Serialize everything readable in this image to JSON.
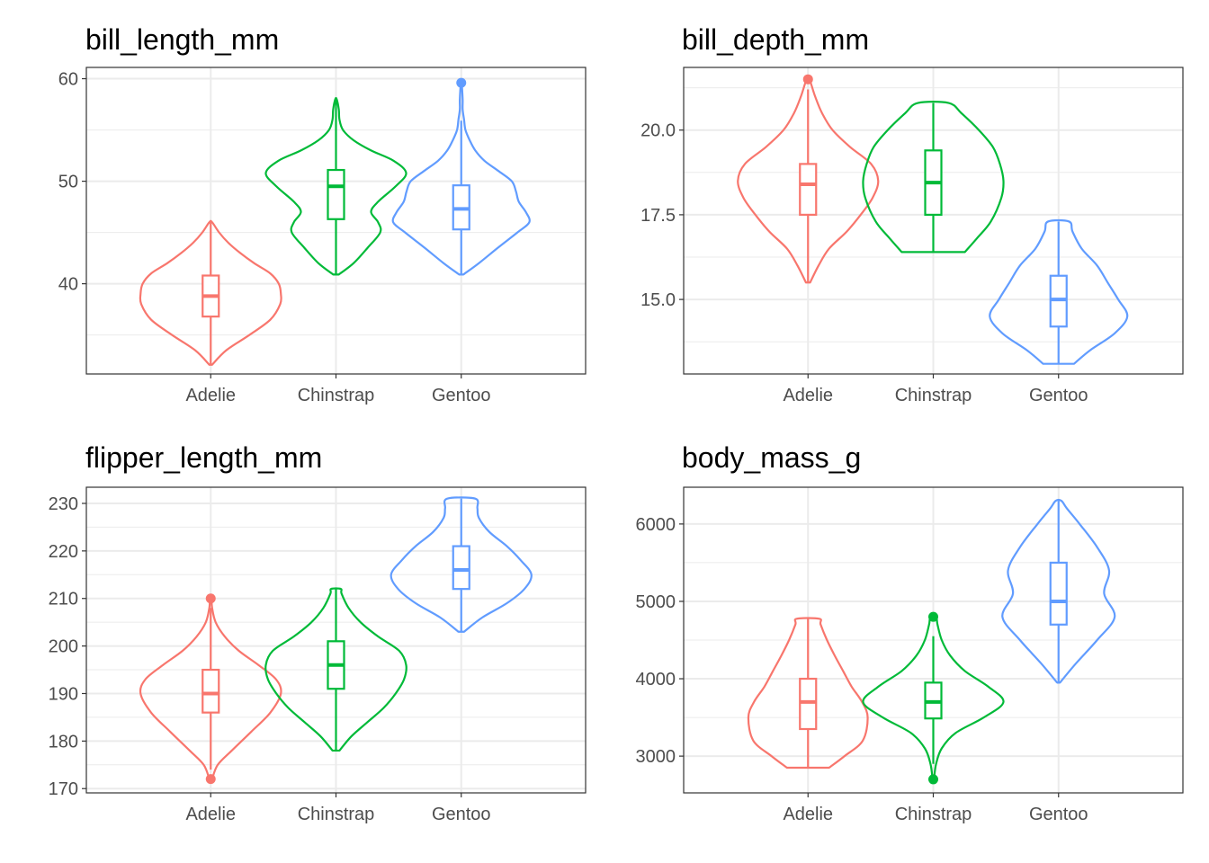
{
  "chart_data": [
    {
      "type": "violin",
      "title": "bill_length_mm",
      "xlabel": "",
      "ylabel": "",
      "categories": [
        "Adelie",
        "Chinstrap",
        "Gentoo"
      ],
      "ylim": [
        31.2,
        61.1
      ],
      "yticks": [
        40,
        50,
        60
      ],
      "ytick_labels": [
        "40",
        "50",
        "60"
      ],
      "minor_yticks": [
        35,
        45,
        55
      ],
      "grid": true,
      "groups": [
        {
          "name": "Adelie",
          "color": "#F8766D",
          "min": 32.1,
          "q1": 36.8,
          "median": 38.8,
          "q3": 40.8,
          "max": 46.0,
          "outliers": [],
          "density": [
            [
              32.1,
              0.02
            ],
            [
              33.5,
              0.22
            ],
            [
              35,
              0.55
            ],
            [
              36.5,
              0.85
            ],
            [
              38,
              0.99
            ],
            [
              39,
              1.0
            ],
            [
              40,
              0.97
            ],
            [
              41,
              0.85
            ],
            [
              42,
              0.62
            ],
            [
              43,
              0.42
            ],
            [
              44,
              0.25
            ],
            [
              45,
              0.12
            ],
            [
              46,
              0.02
            ]
          ]
        },
        {
          "name": "Chinstrap",
          "color": "#00BA38",
          "min": 40.9,
          "q1": 46.3,
          "median": 49.5,
          "q3": 51.1,
          "max": 58.0,
          "outliers": [],
          "density": [
            [
              40.9,
              0.04
            ],
            [
              42,
              0.25
            ],
            [
              43.5,
              0.45
            ],
            [
              45,
              0.63
            ],
            [
              46,
              0.6
            ],
            [
              47,
              0.5
            ],
            [
              48,
              0.6
            ],
            [
              49.5,
              0.85
            ],
            [
              50.8,
              1.0
            ],
            [
              52,
              0.82
            ],
            [
              53,
              0.5
            ],
            [
              54,
              0.25
            ],
            [
              55,
              0.1
            ],
            [
              56,
              0.05
            ],
            [
              57,
              0.04
            ],
            [
              58,
              0.01
            ]
          ]
        },
        {
          "name": "Gentoo",
          "color": "#619CFF",
          "min": 40.9,
          "q1": 45.3,
          "median": 47.3,
          "q3": 49.6,
          "max": 55.9,
          "outliers": [
            59.6
          ],
          "density": [
            [
              40.9,
              0.03
            ],
            [
              42,
              0.25
            ],
            [
              43.5,
              0.52
            ],
            [
              45,
              0.8
            ],
            [
              46,
              0.97
            ],
            [
              47,
              0.92
            ],
            [
              48,
              0.82
            ],
            [
              49,
              0.78
            ],
            [
              50,
              0.72
            ],
            [
              51,
              0.53
            ],
            [
              52,
              0.33
            ],
            [
              53,
              0.2
            ],
            [
              54,
              0.12
            ],
            [
              55,
              0.06
            ],
            [
              56,
              0.04
            ],
            [
              57,
              0.02
            ],
            [
              58,
              0.02
            ],
            [
              59.6,
              0.005
            ]
          ]
        }
      ]
    },
    {
      "type": "violin",
      "title": "bill_depth_mm",
      "xlabel": "",
      "ylabel": "",
      "categories": [
        "Adelie",
        "Chinstrap",
        "Gentoo"
      ],
      "ylim": [
        12.8,
        21.85
      ],
      "yticks": [
        15.0,
        17.5,
        20.0
      ],
      "ytick_labels": [
        "15.0",
        "17.5",
        "20.0"
      ],
      "minor_yticks": [
        13.75,
        16.25,
        18.75,
        21.25
      ],
      "grid": true,
      "groups": [
        {
          "name": "Adelie",
          "color": "#F8766D",
          "min": 15.5,
          "q1": 17.5,
          "median": 18.4,
          "q3": 19.0,
          "max": 21.2,
          "outliers": [
            21.5
          ],
          "density": [
            [
              15.5,
              0.03
            ],
            [
              16,
              0.15
            ],
            [
              16.5,
              0.3
            ],
            [
              17,
              0.55
            ],
            [
              17.5,
              0.75
            ],
            [
              18,
              0.92
            ],
            [
              18.5,
              1.0
            ],
            [
              19,
              0.9
            ],
            [
              19.5,
              0.6
            ],
            [
              20,
              0.35
            ],
            [
              20.5,
              0.2
            ],
            [
              21,
              0.1
            ],
            [
              21.5,
              0.02
            ]
          ]
        },
        {
          "name": "Chinstrap",
          "color": "#00BA38",
          "min": 16.4,
          "q1": 17.5,
          "median": 18.45,
          "q3": 19.4,
          "max": 20.8,
          "outliers": [],
          "density": [
            [
              16.4,
              0.45
            ],
            [
              16.8,
              0.62
            ],
            [
              17.3,
              0.82
            ],
            [
              18,
              0.97
            ],
            [
              18.5,
              1.0
            ],
            [
              19,
              0.95
            ],
            [
              19.5,
              0.85
            ],
            [
              20,
              0.65
            ],
            [
              20.5,
              0.4
            ],
            [
              20.8,
              0.22
            ]
          ]
        },
        {
          "name": "Gentoo",
          "color": "#619CFF",
          "min": 13.1,
          "q1": 14.2,
          "median": 15.0,
          "q3": 15.7,
          "max": 17.3,
          "outliers": [],
          "density": [
            [
              13.1,
              0.22
            ],
            [
              13.5,
              0.45
            ],
            [
              14,
              0.8
            ],
            [
              14.5,
              0.98
            ],
            [
              15,
              0.85
            ],
            [
              15.5,
              0.7
            ],
            [
              16,
              0.55
            ],
            [
              16.5,
              0.33
            ],
            [
              17,
              0.2
            ],
            [
              17.3,
              0.15
            ]
          ]
        }
      ]
    },
    {
      "type": "violin",
      "title": "flipper_length_mm",
      "xlabel": "",
      "ylabel": "",
      "categories": [
        "Adelie",
        "Chinstrap",
        "Gentoo"
      ],
      "ylim": [
        169.1,
        233.4
      ],
      "yticks": [
        170,
        180,
        190,
        200,
        210,
        220,
        230
      ],
      "ytick_labels": [
        "170",
        "180",
        "190",
        "200",
        "210",
        "220",
        "230"
      ],
      "minor_yticks": [
        175,
        185,
        195,
        205,
        215,
        225
      ],
      "grid": true,
      "groups": [
        {
          "name": "Adelie",
          "color": "#F8766D",
          "min": 174,
          "q1": 186,
          "median": 190,
          "q3": 195,
          "max": 208,
          "outliers": [
            172,
            210
          ],
          "density": [
            [
              172,
              0.02
            ],
            [
              175,
              0.1
            ],
            [
              178,
              0.3
            ],
            [
              182,
              0.58
            ],
            [
              186,
              0.85
            ],
            [
              190,
              1.0
            ],
            [
              193,
              0.93
            ],
            [
              196,
              0.68
            ],
            [
              199,
              0.4
            ],
            [
              202,
              0.2
            ],
            [
              205,
              0.07
            ],
            [
              208,
              0.02
            ],
            [
              210,
              0.01
            ]
          ]
        },
        {
          "name": "Chinstrap",
          "color": "#00BA38",
          "min": 178,
          "q1": 191,
          "median": 196,
          "q3": 201,
          "max": 212,
          "outliers": [],
          "density": [
            [
              178,
              0.05
            ],
            [
              181,
              0.22
            ],
            [
              184,
              0.45
            ],
            [
              187,
              0.68
            ],
            [
              190,
              0.85
            ],
            [
              193,
              0.97
            ],
            [
              196,
              1.0
            ],
            [
              199,
              0.9
            ],
            [
              202,
              0.6
            ],
            [
              205,
              0.35
            ],
            [
              208,
              0.18
            ],
            [
              211,
              0.08
            ],
            [
              212,
              0.07
            ]
          ]
        },
        {
          "name": "Gentoo",
          "color": "#619CFF",
          "min": 203,
          "q1": 212,
          "median": 216,
          "q3": 221,
          "max": 231,
          "outliers": [],
          "density": [
            [
              203,
              0.04
            ],
            [
              206,
              0.3
            ],
            [
              209,
              0.65
            ],
            [
              212,
              0.9
            ],
            [
              215,
              1.0
            ],
            [
              218,
              0.85
            ],
            [
              221,
              0.65
            ],
            [
              224,
              0.4
            ],
            [
              227,
              0.25
            ],
            [
              229,
              0.23
            ],
            [
              231,
              0.2
            ]
          ]
        }
      ]
    },
    {
      "type": "violin",
      "title": "body_mass_g",
      "xlabel": "",
      "ylabel": "",
      "categories": [
        "Adelie",
        "Chinstrap",
        "Gentoo"
      ],
      "ylim": [
        2525,
        6475
      ],
      "yticks": [
        3000,
        4000,
        5000,
        6000
      ],
      "ytick_labels": [
        "3000",
        "4000",
        "5000",
        "6000"
      ],
      "minor_yticks": [
        3500,
        4500,
        5500
      ],
      "grid": true,
      "groups": [
        {
          "name": "Adelie",
          "color": "#F8766D",
          "min": 2850,
          "q1": 3350,
          "median": 3700,
          "q3": 4000,
          "max": 4775,
          "outliers": [],
          "density": [
            [
              2850,
              0.3
            ],
            [
              3000,
              0.52
            ],
            [
              3200,
              0.78
            ],
            [
              3500,
              0.85
            ],
            [
              3700,
              0.77
            ],
            [
              3900,
              0.62
            ],
            [
              4100,
              0.5
            ],
            [
              4300,
              0.38
            ],
            [
              4500,
              0.27
            ],
            [
              4700,
              0.18
            ],
            [
              4775,
              0.16
            ]
          ]
        },
        {
          "name": "Chinstrap",
          "color": "#00BA38",
          "min": 2900,
          "q1": 3487,
          "median": 3700,
          "q3": 3950,
          "max": 4550,
          "outliers": [
            2700,
            4800
          ],
          "density": [
            [
              2700,
              0.01
            ],
            [
              2900,
              0.04
            ],
            [
              3100,
              0.12
            ],
            [
              3300,
              0.32
            ],
            [
              3500,
              0.72
            ],
            [
              3700,
              1.0
            ],
            [
              3900,
              0.78
            ],
            [
              4100,
              0.45
            ],
            [
              4300,
              0.24
            ],
            [
              4500,
              0.12
            ],
            [
              4700,
              0.06
            ],
            [
              4800,
              0.04
            ]
          ]
        },
        {
          "name": "Gentoo",
          "color": "#619CFF",
          "min": 3950,
          "q1": 4700,
          "median": 5000,
          "q3": 5500,
          "max": 6300,
          "outliers": [],
          "density": [
            [
              3950,
              0.02
            ],
            [
              4200,
              0.25
            ],
            [
              4500,
              0.55
            ],
            [
              4800,
              0.8
            ],
            [
              5100,
              0.65
            ],
            [
              5400,
              0.72
            ],
            [
              5700,
              0.55
            ],
            [
              6000,
              0.3
            ],
            [
              6200,
              0.12
            ],
            [
              6300,
              0.04
            ]
          ]
        }
      ]
    }
  ]
}
